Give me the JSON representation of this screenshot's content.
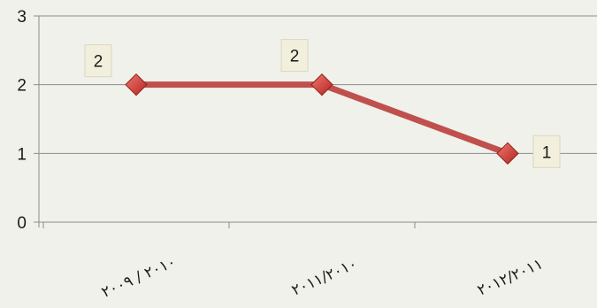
{
  "chart_data": {
    "type": "line",
    "categories": [
      "٢٠١٠ / ٢٠٠٩",
      "٢٠١١/٢٠١٠",
      "٢٠١٢/٢٠١١"
    ],
    "series": [
      {
        "values": [
          2,
          2,
          1
        ]
      }
    ],
    "data_labels": [
      "2",
      "2",
      "1"
    ],
    "y_ticks": [
      "0",
      "1",
      "2",
      "3"
    ],
    "ylim": [
      0,
      3
    ],
    "grid": true,
    "legend": "none",
    "marker": "diamond",
    "colors": {
      "line": "#c0504d",
      "marker": "#d9413b",
      "grid": "#8c8c8c",
      "background": "#f0f1ea",
      "label_box": "#f2f0dd"
    }
  }
}
